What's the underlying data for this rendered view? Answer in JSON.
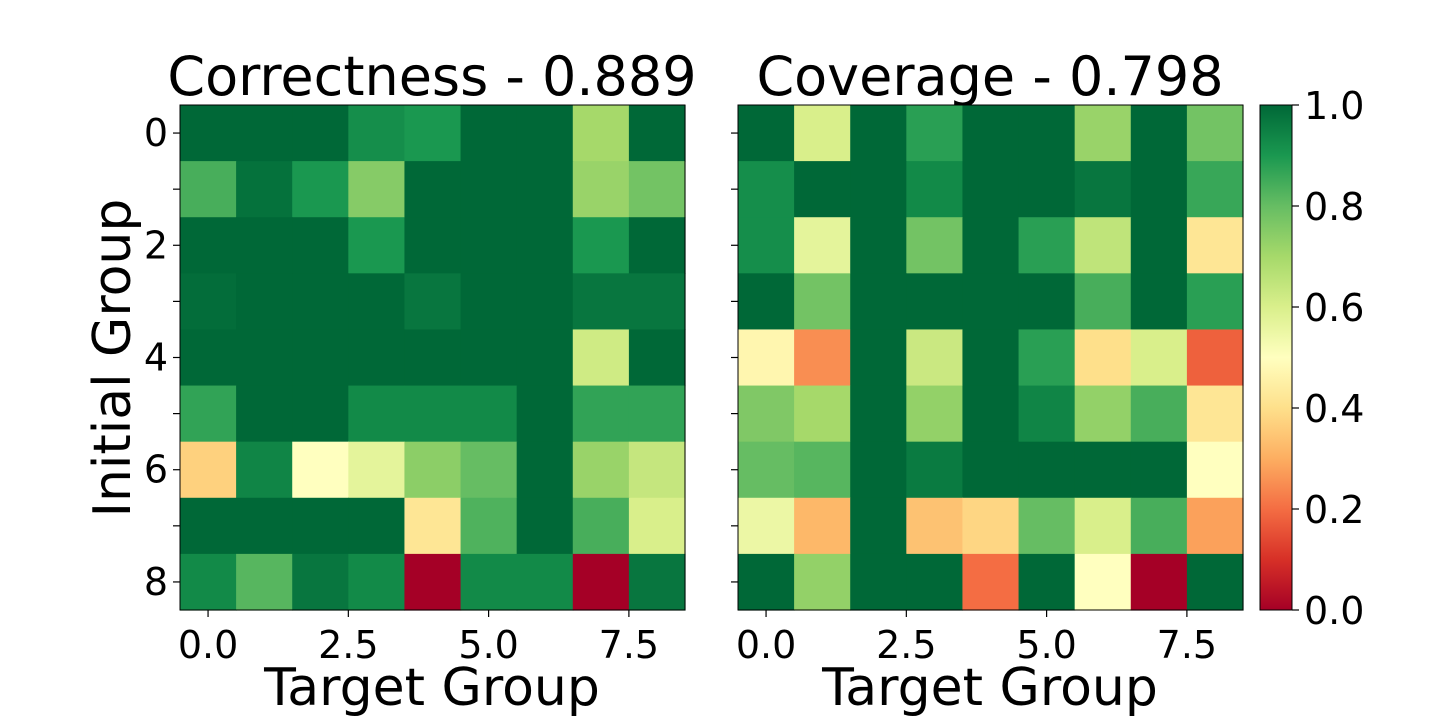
{
  "chart_data": [
    {
      "type": "heatmap",
      "title": "Correctness - 0.889",
      "xlabel": "Target Group",
      "ylabel": "Initial Group",
      "xticks": [
        "0.0",
        "2.5",
        "5.0",
        "7.5"
      ],
      "xtick_values": [
        0,
        2.5,
        5,
        7.5
      ],
      "yticks": [
        "0",
        "2",
        "4",
        "6",
        "8"
      ],
      "ytick_values": [
        0,
        2,
        4,
        6,
        8
      ],
      "xlim": [
        -0.5,
        8.5
      ],
      "ylim": [
        8.5,
        -0.5
      ],
      "colormap": "RdYlGn",
      "vmin": 0,
      "vmax": 1,
      "values": [
        [
          1.0,
          1.0,
          1.0,
          0.92,
          0.9,
          1.0,
          1.0,
          0.7,
          1.0
        ],
        [
          0.84,
          0.98,
          0.9,
          0.75,
          1.0,
          1.0,
          1.0,
          0.72,
          0.78
        ],
        [
          1.0,
          1.0,
          1.0,
          0.9,
          1.0,
          1.0,
          1.0,
          0.9,
          1.0
        ],
        [
          0.99,
          1.0,
          1.0,
          1.0,
          0.97,
          1.0,
          1.0,
          0.97,
          0.97
        ],
        [
          1.0,
          1.0,
          1.0,
          1.0,
          1.0,
          1.0,
          1.0,
          0.62,
          1.0
        ],
        [
          0.87,
          1.0,
          1.0,
          0.93,
          0.93,
          0.93,
          1.0,
          0.87,
          0.87
        ],
        [
          0.37,
          0.94,
          0.5,
          0.57,
          0.74,
          0.8,
          1.0,
          0.72,
          0.64
        ],
        [
          1.0,
          1.0,
          1.0,
          1.0,
          0.42,
          0.83,
          1.0,
          0.84,
          0.6
        ],
        [
          0.93,
          0.82,
          0.97,
          0.93,
          0.0,
          0.93,
          0.93,
          0.0,
          0.97
        ]
      ]
    },
    {
      "type": "heatmap",
      "title": "Coverage - 0.798",
      "xlabel": "Target Group",
      "ylabel": "",
      "xticks": [
        "0.0",
        "2.5",
        "5.0",
        "7.5"
      ],
      "xtick_values": [
        0,
        2.5,
        5,
        7.5
      ],
      "yticks": [],
      "xlim": [
        -0.5,
        8.5
      ],
      "ylim": [
        8.5,
        -0.5
      ],
      "colormap": "RdYlGn",
      "vmin": 0,
      "vmax": 1,
      "values": [
        [
          1.0,
          0.6,
          1.0,
          0.88,
          1.0,
          1.0,
          0.72,
          1.0,
          0.78
        ],
        [
          0.92,
          1.0,
          1.0,
          0.93,
          1.0,
          1.0,
          0.97,
          1.0,
          0.86
        ],
        [
          0.92,
          0.57,
          1.0,
          0.78,
          1.0,
          0.88,
          0.65,
          1.0,
          0.42
        ],
        [
          1.0,
          0.78,
          1.0,
          1.0,
          1.0,
          1.0,
          0.84,
          1.0,
          0.88
        ],
        [
          0.47,
          0.25,
          1.0,
          0.63,
          1.0,
          0.88,
          0.4,
          0.6,
          0.18
        ],
        [
          0.76,
          0.7,
          1.0,
          0.73,
          1.0,
          0.94,
          0.73,
          0.84,
          0.42
        ],
        [
          0.8,
          0.82,
          1.0,
          0.96,
          1.0,
          1.0,
          1.0,
          1.0,
          0.5
        ],
        [
          0.55,
          0.32,
          1.0,
          0.34,
          0.38,
          0.8,
          0.6,
          0.84,
          0.28
        ],
        [
          1.0,
          0.73,
          1.0,
          1.0,
          0.2,
          1.0,
          0.5,
          0.0,
          1.0
        ]
      ]
    }
  ],
  "colorbar": {
    "colormap": "RdYlGn",
    "vmin": 0,
    "vmax": 1,
    "ticks": [
      "0.0",
      "0.2",
      "0.4",
      "0.6",
      "0.8",
      "1.0"
    ],
    "tick_values": [
      0,
      0.2,
      0.4,
      0.6,
      0.8,
      1.0
    ]
  }
}
